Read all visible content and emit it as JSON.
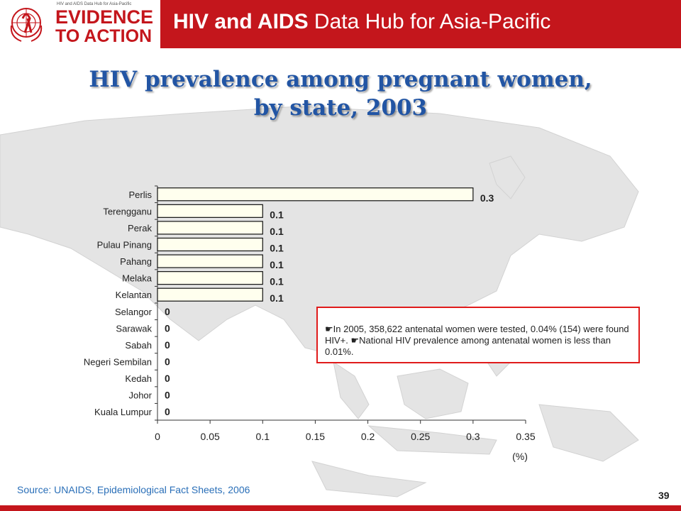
{
  "header": {
    "logo_subtitle": "HIV and AIDS Data Hub for Asia-Pacific",
    "logo_line1": "EVIDENCE",
    "logo_line2": "TO ACTION",
    "hub_title_bold": "HIV and AIDS",
    "hub_title_rest": " Data Hub for Asia-Pacific"
  },
  "title_line1": "HIV prevalence among pregnant women,",
  "title_line2": "by state, 2003",
  "note": "In 2005, 358,622 antenatal women were tested, 0.04% (154) were found HIV+. National HIV prevalence among antenatal women is less than 0.01%.",
  "note_parts": {
    "part1": "In 2005, 358,622 antenatal women were tested, 0.04% (154) were found HIV+. ",
    "part2": "National HIV prevalence among antenatal women is less than 0.01%."
  },
  "source": "Source: UNAIDS, Epidemiological Fact Sheets, 2006",
  "page_number": "39",
  "colors": {
    "brand_red": "#c4161c",
    "title_blue": "#2255a4",
    "bar_fill": "#ffffee"
  },
  "chart_data": {
    "type": "bar",
    "orientation": "horizontal",
    "categories": [
      "Perlis",
      "Terengganu",
      "Perak",
      "Pulau Pinang",
      "Pahang",
      "Melaka",
      "Kelantan",
      "Selangor",
      "Sarawak",
      "Sabah",
      "Negeri Sembilan",
      "Kedah",
      "Johor",
      "Kuala Lumpur"
    ],
    "values": [
      0.3,
      0.1,
      0.1,
      0.1,
      0.1,
      0.1,
      0.1,
      0,
      0,
      0,
      0,
      0,
      0,
      0
    ],
    "data_labels": [
      "0.3",
      "0.1",
      "0.1",
      "0.1",
      "0.1",
      "0.1",
      "0.1",
      "0",
      "0",
      "0",
      "0",
      "0",
      "0",
      "0"
    ],
    "xlim": [
      0,
      0.35
    ],
    "xticks": [
      "0",
      "0.05",
      "0.1",
      "0.15",
      "0.2",
      "0.25",
      "0.3",
      "0.35"
    ],
    "xlabel": "(%)",
    "grid": false
  }
}
